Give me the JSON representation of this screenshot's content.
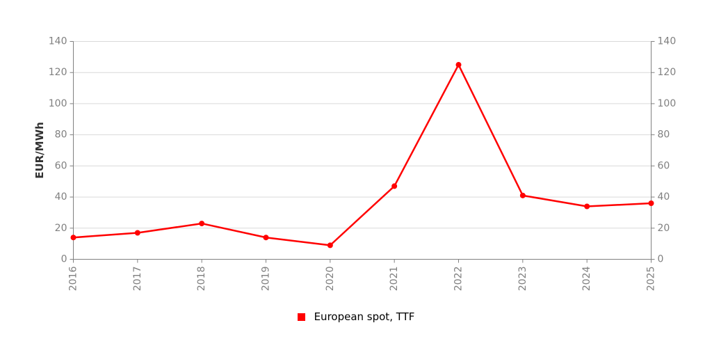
{
  "chart_data": {
    "type": "line",
    "title": "",
    "xlabel": "",
    "ylabel": "EUR/MWh",
    "x": [
      "2016",
      "2017",
      "2018",
      "2019",
      "2020",
      "2021",
      "2022",
      "2023",
      "2024",
      "2025"
    ],
    "series": [
      {
        "name": "European spot, TTF",
        "color": "#ff0000",
        "values": [
          14,
          17,
          23,
          14,
          9,
          47,
          125,
          41,
          34,
          36
        ]
      }
    ],
    "ylim": [
      0,
      140
    ],
    "ytick_step": 20,
    "yticks": [
      0,
      20,
      40,
      60,
      80,
      100,
      120,
      140
    ],
    "grid": "horizontal",
    "y_axis_sides": "both",
    "legend_position": "bottom-center",
    "colors": {
      "line": "#ff0000",
      "grid": "#d9d9d9",
      "axis": "#808080",
      "tick_text": "#7f7f7f",
      "legend_text": "#000000",
      "axis_title": "#333333"
    }
  }
}
